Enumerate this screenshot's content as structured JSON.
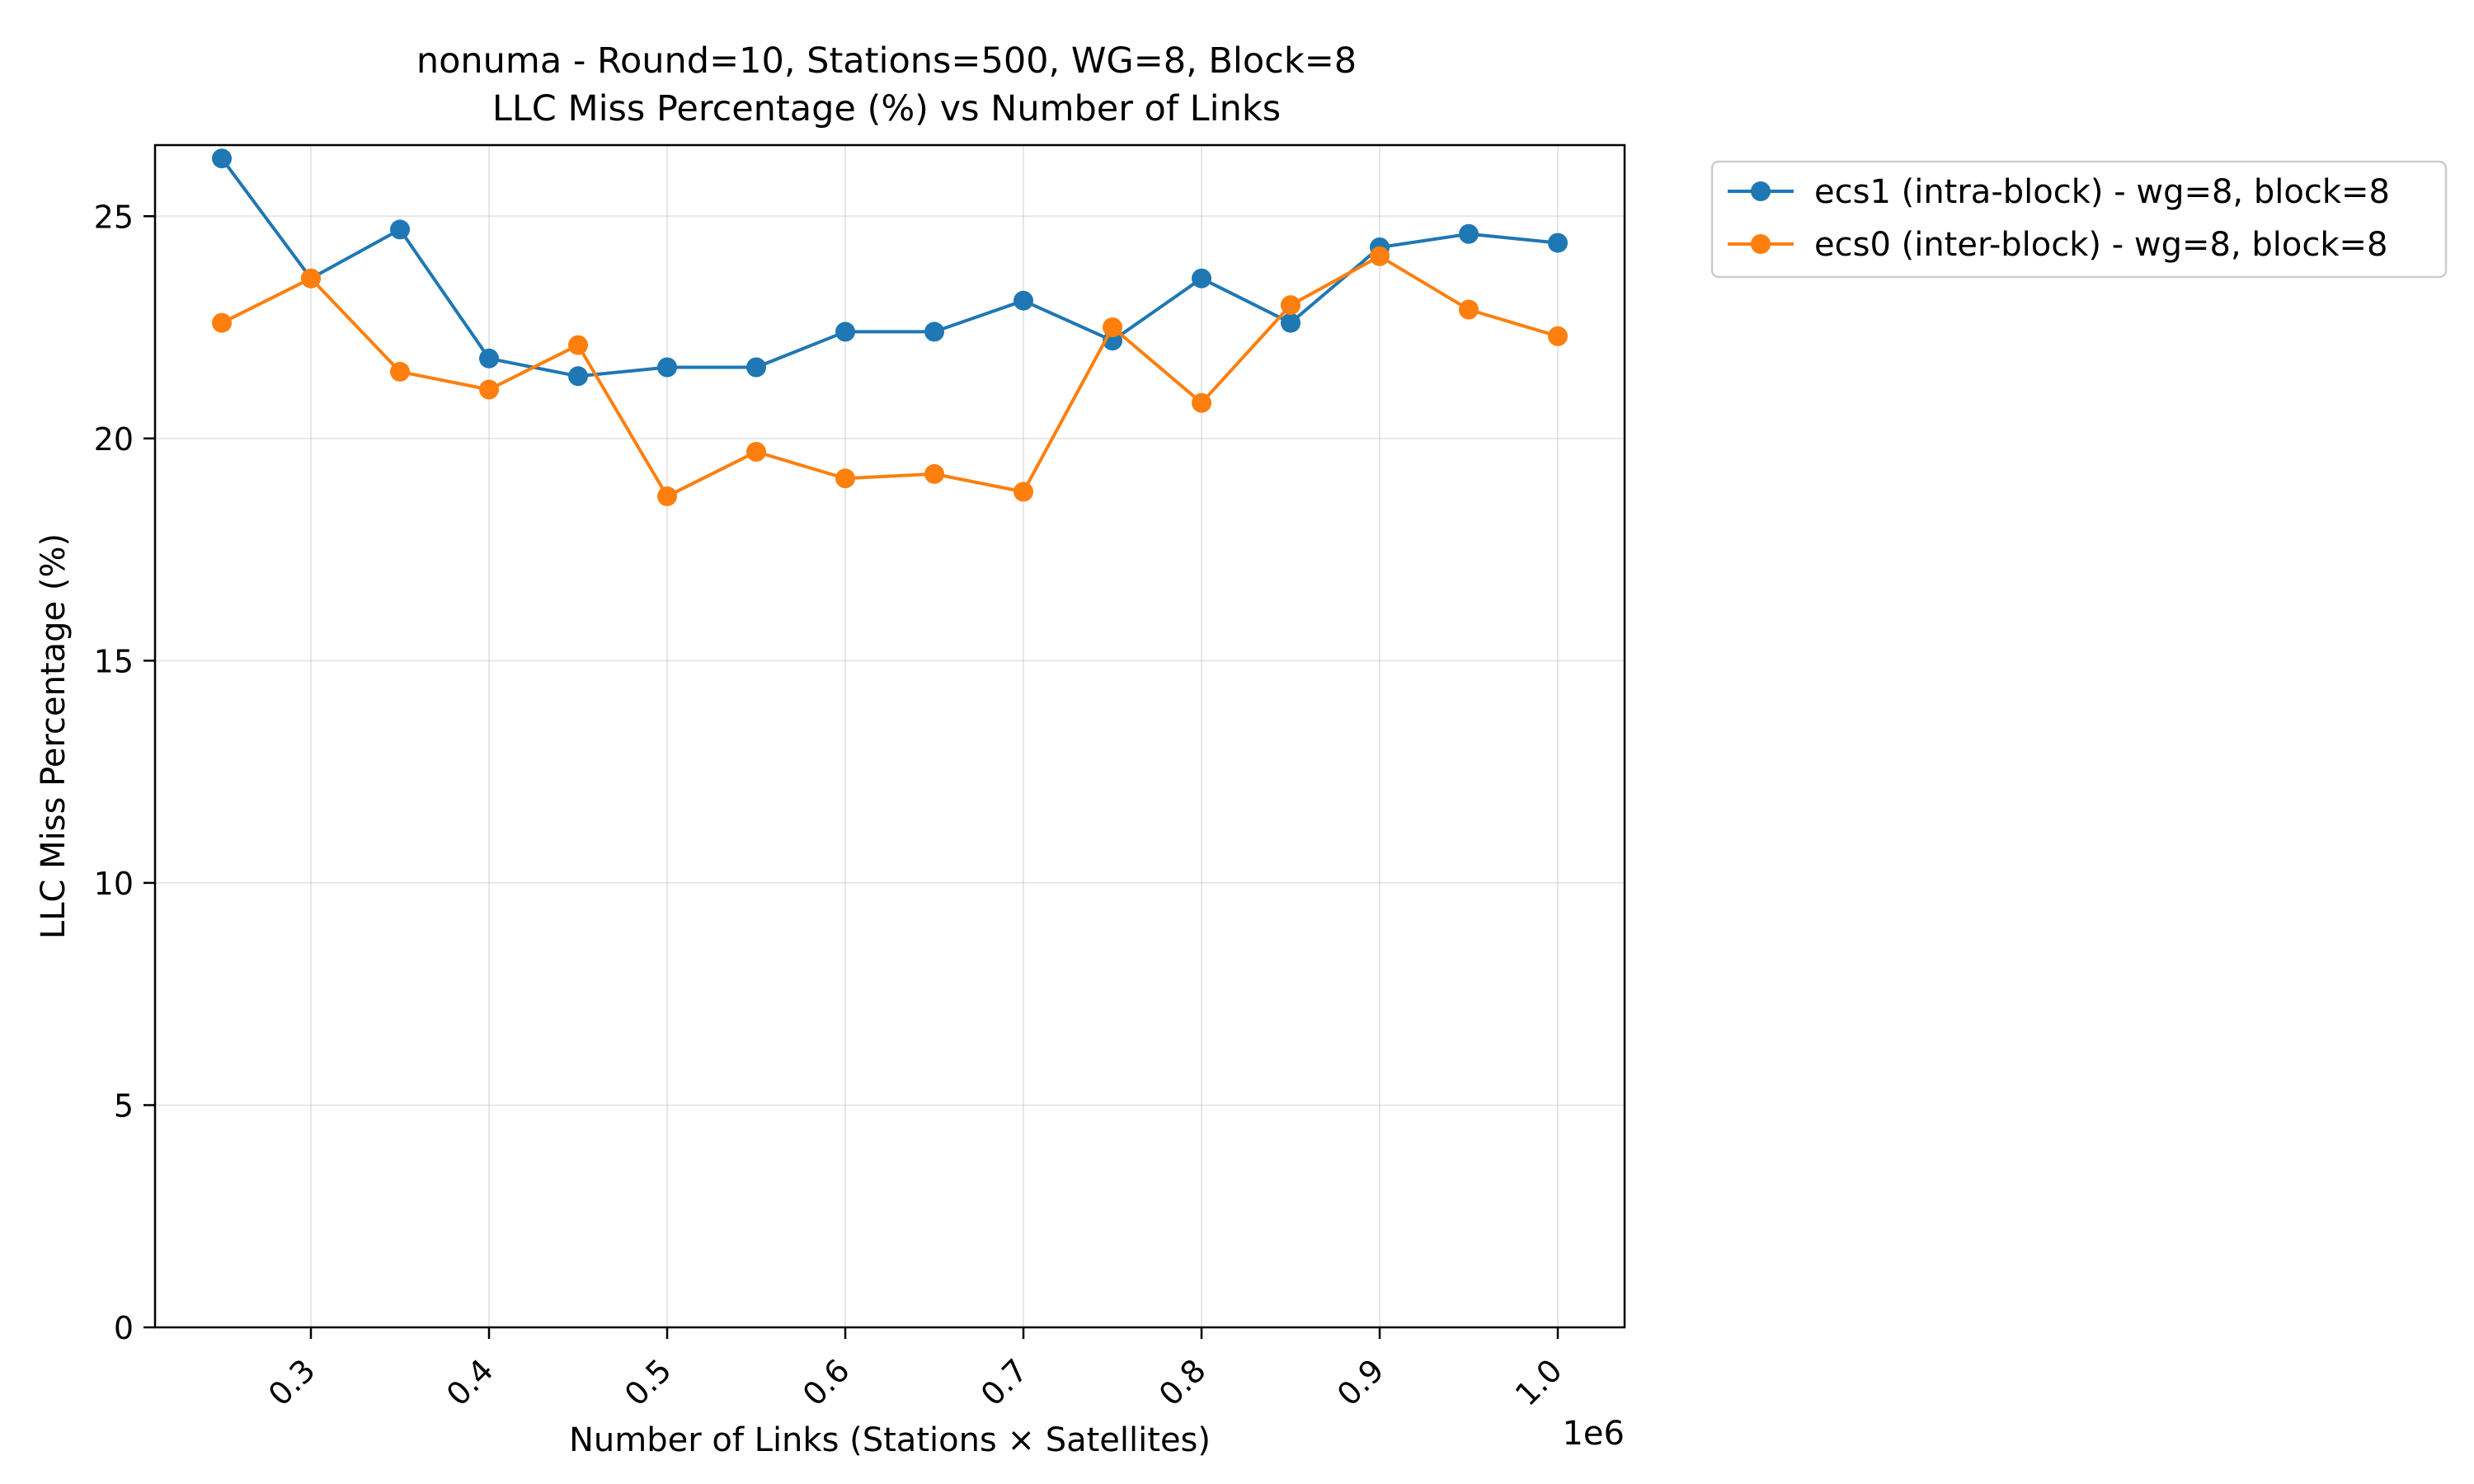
{
  "chart_data": {
    "type": "line",
    "title_line1": "nonuma - Round=10, Stations=500, WG=8, Block=8",
    "title_line2": "LLC Miss Percentage (%) vs Number of Links",
    "xlabel": "Number of Links (Stations × Satellites)",
    "ylabel": "LLC Miss Percentage (%)",
    "x_offset_label": "1e6",
    "xlim": [
      212500,
      1037500
    ],
    "ylim": [
      0,
      26.6
    ],
    "x_ticks": [
      300000,
      400000,
      500000,
      600000,
      700000,
      800000,
      900000,
      1000000
    ],
    "x_tick_labels": [
      "0.3",
      "0.4",
      "0.5",
      "0.6",
      "0.7",
      "0.8",
      "0.9",
      "1.0"
    ],
    "y_ticks": [
      0,
      5,
      10,
      15,
      20,
      25
    ],
    "y_tick_labels": [
      "0",
      "5",
      "10",
      "15",
      "20",
      "25"
    ],
    "grid": true,
    "legend_position": "outside-upper-right",
    "x": [
      250000,
      300000,
      350000,
      400000,
      450000,
      500000,
      550000,
      600000,
      650000,
      700000,
      750000,
      800000,
      850000,
      900000,
      950000,
      1000000
    ],
    "series": [
      {
        "name": "ecs1 (intra-block) - wg=8, block=8",
        "color": "#1f77b4",
        "values": [
          26.3,
          23.6,
          24.7,
          21.8,
          21.4,
          21.6,
          21.6,
          22.4,
          22.4,
          23.1,
          22.2,
          23.6,
          22.6,
          24.3,
          24.6,
          24.4
        ]
      },
      {
        "name": "ecs0 (inter-block) - wg=8, block=8",
        "color": "#ff7f0e",
        "values": [
          22.6,
          23.6,
          21.5,
          21.1,
          22.1,
          18.7,
          19.7,
          19.1,
          19.2,
          18.8,
          22.5,
          20.8,
          23.0,
          24.1,
          22.9,
          22.3
        ]
      }
    ]
  }
}
